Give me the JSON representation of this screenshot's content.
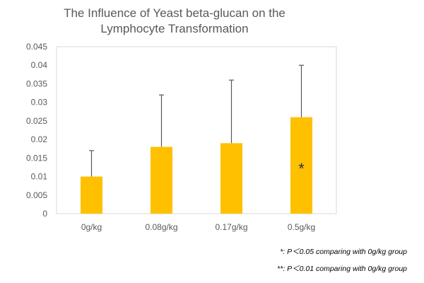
{
  "chart_data": {
    "type": "bar",
    "title_lines": [
      "The Influence of Yeast beta-glucan on the",
      "Lymphocyte Transformation"
    ],
    "categories": [
      "0g/kg",
      "0.08g/kg",
      "0.17g/kg",
      "0.5g/kg"
    ],
    "values": [
      0.01,
      0.018,
      0.019,
      0.026
    ],
    "error_upper": [
      0.017,
      0.032,
      0.036,
      0.04
    ],
    "significance_markers": [
      "",
      "",
      "",
      "*"
    ],
    "ylim": [
      0,
      0.045
    ],
    "yticks": [
      "0",
      "0.005",
      "0.01",
      "0.015",
      "0.02",
      "0.025",
      "0.03",
      "0.035",
      "0.04",
      "0.045"
    ],
    "xlabel": "",
    "ylabel": "",
    "grid": false,
    "bar_color": "#FFC000",
    "error_color": "#595959",
    "notes": [
      "*: P＜0.05 comparing with 0g/kg group",
      "**: P＜0.01 comparing with 0g/kg group"
    ]
  }
}
